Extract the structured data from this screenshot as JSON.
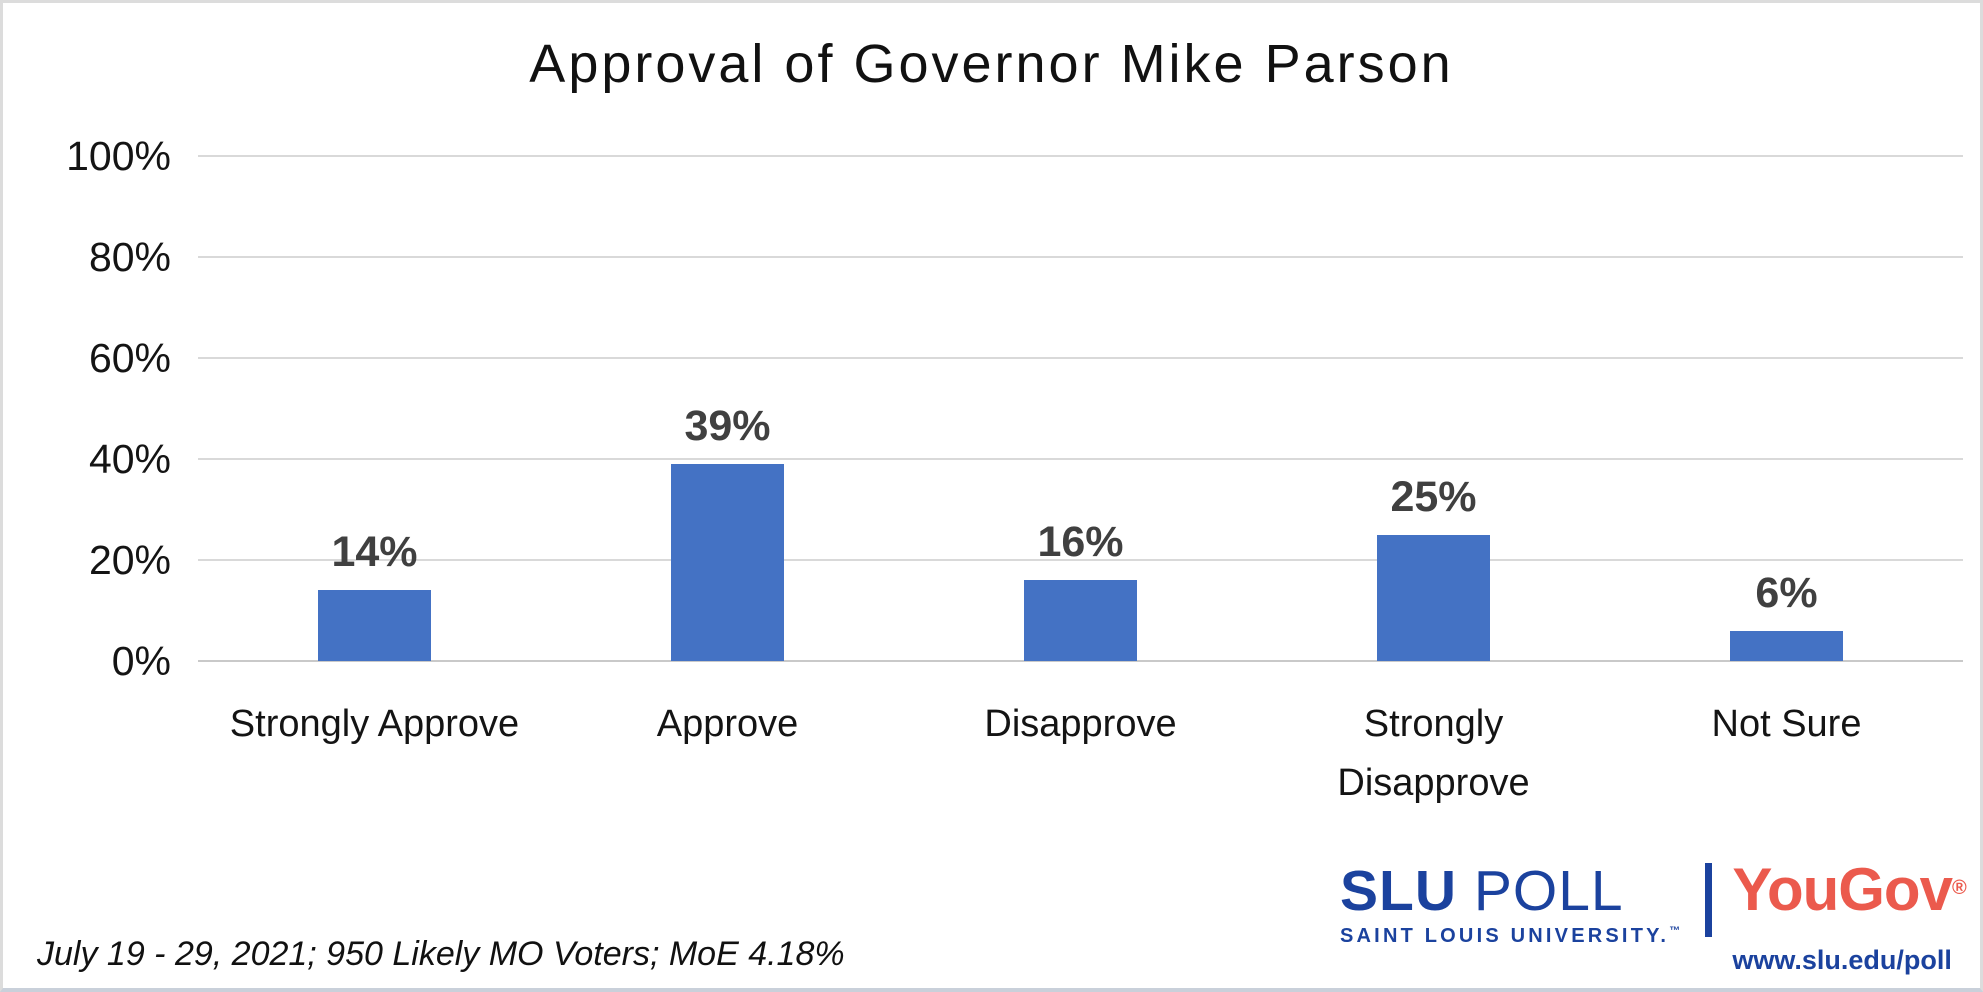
{
  "chart_data": {
    "type": "bar",
    "title": "Approval of Governor Mike Parson",
    "categories": [
      "Strongly Approve",
      "Approve",
      "Disapprove",
      "Strongly Disapprove",
      "Not Sure"
    ],
    "values": [
      14,
      39,
      16,
      25,
      6
    ],
    "value_labels": [
      "14%",
      "39%",
      "16%",
      "25%",
      "6%"
    ],
    "xlabel": "",
    "ylabel": "",
    "ylim": [
      0,
      100
    ],
    "yticks": [
      0,
      20,
      40,
      60,
      80,
      100
    ],
    "ytick_labels": [
      "0%",
      "20%",
      "40%",
      "60%",
      "80%",
      "100%"
    ],
    "grid": true,
    "legend": false,
    "bar_color": "#4472C4",
    "data_label_color": "#404040",
    "gridline_color": "#D9D9D9",
    "baseline_color": "#C9C9C9"
  },
  "footnote": "July 19 - 29, 2021; 950 Likely MO Voters; MoE 4.18%",
  "branding": {
    "slu_poll": {
      "name_bold": "SLU",
      "name_light": " POLL",
      "subtitle": "SAINT LOUIS UNIVERSITY.",
      "trademark": "™",
      "color": "#1B429E"
    },
    "yougov": {
      "name": "YouGov",
      "registered": "®",
      "color": "#EB5A4D"
    },
    "url": "www.slu.edu/poll"
  }
}
